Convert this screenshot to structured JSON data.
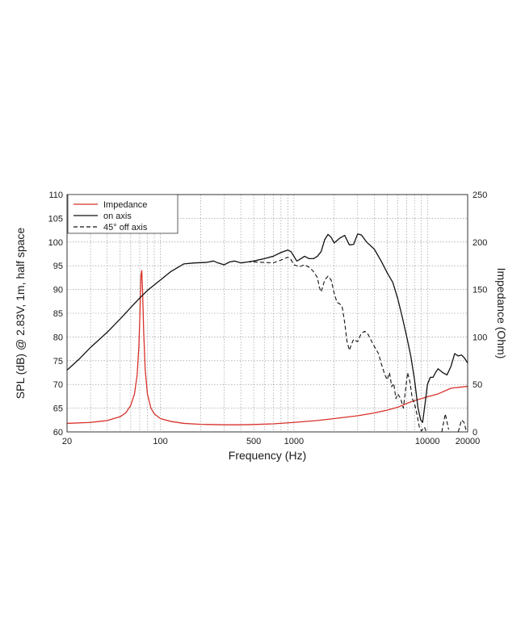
{
  "chart_data": {
    "type": "line",
    "xlabel": "Frequency (Hz)",
    "ylabel_left": "SPL (dB) @ 2.83V, 1m, half space",
    "ylabel_right": "Impedance (Ohm)",
    "x_scale": "log",
    "xlim": [
      20,
      20000
    ],
    "ylim_left": [
      60,
      110
    ],
    "ylim_right": [
      0,
      250
    ],
    "x_ticks": [
      20,
      100,
      500,
      1000,
      10000,
      20000
    ],
    "x_tick_labels": [
      "20",
      "100",
      "500",
      "1000",
      "10000",
      "20000"
    ],
    "y_left_ticks": [
      60,
      65,
      70,
      75,
      80,
      85,
      90,
      95,
      100,
      105,
      110
    ],
    "y_right_ticks": [
      0,
      50,
      100,
      150,
      200,
      250
    ],
    "grid": true,
    "legend_position": "top-left",
    "series": [
      {
        "name": "Impedance",
        "axis": "right",
        "color": "#d8312a",
        "style": "solid",
        "points": [
          [
            20,
            9
          ],
          [
            30,
            10
          ],
          [
            40,
            12
          ],
          [
            50,
            16
          ],
          [
            55,
            20
          ],
          [
            60,
            28
          ],
          [
            64,
            40
          ],
          [
            67,
            60
          ],
          [
            69,
            90
          ],
          [
            70.5,
            130
          ],
          [
            71.5,
            165
          ],
          [
            72.5,
            170
          ],
          [
            73.5,
            150
          ],
          [
            75,
            105
          ],
          [
            77,
            65
          ],
          [
            80,
            40
          ],
          [
            85,
            25
          ],
          [
            90,
            19
          ],
          [
            100,
            14
          ],
          [
            120,
            11
          ],
          [
            150,
            9
          ],
          [
            200,
            8
          ],
          [
            300,
            7.5
          ],
          [
            400,
            7.5
          ],
          [
            500,
            7.8
          ],
          [
            700,
            8.5
          ],
          [
            1000,
            10
          ],
          [
            1500,
            12
          ],
          [
            2000,
            14
          ],
          [
            3000,
            17
          ],
          [
            4000,
            20
          ],
          [
            5000,
            23
          ],
          [
            6000,
            26
          ],
          [
            7000,
            30
          ],
          [
            8000,
            33
          ],
          [
            10000,
            37
          ],
          [
            12000,
            40
          ],
          [
            15000,
            46
          ],
          [
            20000,
            48
          ]
        ]
      },
      {
        "name": "on axis",
        "axis": "left",
        "color": "#111111",
        "style": "solid",
        "points": [
          [
            20,
            73
          ],
          [
            25,
            75.5
          ],
          [
            30,
            77.8
          ],
          [
            40,
            81
          ],
          [
            50,
            83.8
          ],
          [
            60,
            86.2
          ],
          [
            70,
            88.2
          ],
          [
            80,
            89.8
          ],
          [
            100,
            92
          ],
          [
            120,
            93.8
          ],
          [
            150,
            95.4
          ],
          [
            180,
            95.6
          ],
          [
            220,
            95.7
          ],
          [
            250,
            96
          ],
          [
            270,
            95.6
          ],
          [
            300,
            95.2
          ],
          [
            330,
            95.8
          ],
          [
            360,
            96
          ],
          [
            400,
            95.6
          ],
          [
            450,
            95.8
          ],
          [
            500,
            96
          ],
          [
            600,
            96.5
          ],
          [
            700,
            97
          ],
          [
            800,
            97.8
          ],
          [
            900,
            98.3
          ],
          [
            950,
            98
          ],
          [
            1000,
            97
          ],
          [
            1050,
            96
          ],
          [
            1100,
            96.3
          ],
          [
            1200,
            97
          ],
          [
            1300,
            96.5
          ],
          [
            1400,
            96.5
          ],
          [
            1500,
            97
          ],
          [
            1600,
            98
          ],
          [
            1700,
            100.5
          ],
          [
            1800,
            101.6
          ],
          [
            1900,
            101
          ],
          [
            2000,
            99.8
          ],
          [
            2200,
            100.8
          ],
          [
            2400,
            101.4
          ],
          [
            2600,
            99.4
          ],
          [
            2800,
            99.5
          ],
          [
            3000,
            101.7
          ],
          [
            3200,
            101.5
          ],
          [
            3500,
            100
          ],
          [
            4000,
            98.5
          ],
          [
            4500,
            96
          ],
          [
            5000,
            93.5
          ],
          [
            5500,
            91.5
          ],
          [
            6000,
            88
          ],
          [
            6500,
            84
          ],
          [
            7000,
            80
          ],
          [
            7500,
            76
          ],
          [
            8000,
            71
          ],
          [
            8500,
            65
          ],
          [
            8900,
            62.5
          ],
          [
            9200,
            62
          ],
          [
            9600,
            66
          ],
          [
            10000,
            70
          ],
          [
            10500,
            71.5
          ],
          [
            11000,
            71.5
          ],
          [
            11500,
            72.5
          ],
          [
            12000,
            73.3
          ],
          [
            13000,
            72.5
          ],
          [
            14000,
            72
          ],
          [
            15000,
            73.8
          ],
          [
            16000,
            76.5
          ],
          [
            17000,
            76
          ],
          [
            18000,
            76.2
          ],
          [
            19000,
            75.5
          ],
          [
            20000,
            74.5
          ]
        ]
      },
      {
        "name": "45° off axis",
        "axis": "left",
        "color": "#111111",
        "style": "dashed",
        "points": [
          [
            400,
            95.6
          ],
          [
            450,
            95.8
          ],
          [
            500,
            95.8
          ],
          [
            600,
            95.7
          ],
          [
            700,
            95.6
          ],
          [
            800,
            96.2
          ],
          [
            900,
            96.8
          ],
          [
            950,
            96.3
          ],
          [
            1000,
            95.2
          ],
          [
            1100,
            94.8
          ],
          [
            1200,
            95.2
          ],
          [
            1300,
            94.7
          ],
          [
            1400,
            93.8
          ],
          [
            1500,
            92.5
          ],
          [
            1550,
            90.5
          ],
          [
            1600,
            89.5
          ],
          [
            1700,
            92
          ],
          [
            1800,
            92.8
          ],
          [
            1900,
            92
          ],
          [
            2000,
            89.3
          ],
          [
            2100,
            87.3
          ],
          [
            2200,
            87
          ],
          [
            2300,
            86.3
          ],
          [
            2400,
            83
          ],
          [
            2500,
            79
          ],
          [
            2600,
            77.2
          ],
          [
            2700,
            78.5
          ],
          [
            2800,
            79.5
          ],
          [
            3000,
            79
          ],
          [
            3200,
            80.8
          ],
          [
            3400,
            81.2
          ],
          [
            3600,
            80.5
          ],
          [
            3800,
            79.2
          ],
          [
            4000,
            78
          ],
          [
            4300,
            76.5
          ],
          [
            4500,
            74.5
          ],
          [
            4800,
            72
          ],
          [
            5000,
            71
          ],
          [
            5200,
            72.5
          ],
          [
            5400,
            69.5
          ],
          [
            5600,
            70.2
          ],
          [
            5800,
            67
          ],
          [
            6000,
            68
          ],
          [
            6300,
            67
          ],
          [
            6600,
            65
          ],
          [
            6900,
            69.5
          ],
          [
            7100,
            72.5
          ],
          [
            7400,
            70.5
          ],
          [
            7700,
            67
          ],
          [
            8000,
            66
          ],
          [
            8300,
            64
          ],
          [
            8700,
            61
          ],
          [
            9000,
            60.2
          ],
          [
            9500,
            61
          ],
          [
            9800,
            60
          ]
        ]
      },
      {
        "name": "",
        "axis": "left",
        "color": "#111111",
        "style": "dashed",
        "points": [
          [
            12800,
            60
          ],
          [
            13600,
            63.8
          ],
          [
            14400,
            60.5
          ]
        ]
      },
      {
        "name": "",
        "axis": "left",
        "color": "#111111",
        "style": "dashed",
        "points": [
          [
            17000,
            60
          ],
          [
            18000,
            62.5
          ],
          [
            18800,
            62
          ],
          [
            19600,
            60
          ]
        ]
      }
    ]
  }
}
